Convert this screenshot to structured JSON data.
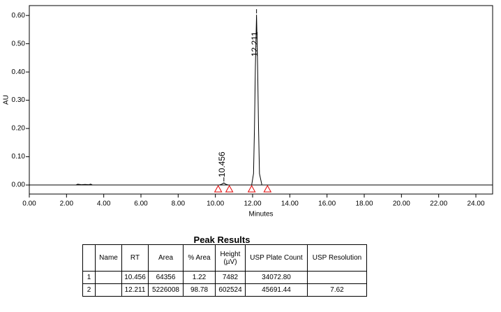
{
  "chart_data": {
    "type": "line",
    "x_label": "Minutes",
    "y_label": "AU",
    "xlim": [
      0,
      24.9
    ],
    "ylim": [
      -0.032,
      0.635
    ],
    "xticks": [
      {
        "value": 0,
        "label": "0.00"
      },
      {
        "value": 2,
        "label": "2.00"
      },
      {
        "value": 4,
        "label": "4.00"
      },
      {
        "value": 6,
        "label": "6.00"
      },
      {
        "value": 8,
        "label": "8.00"
      },
      {
        "value": 10,
        "label": "10.00"
      },
      {
        "value": 12,
        "label": "12.00"
      },
      {
        "value": 14,
        "label": "14.00"
      },
      {
        "value": 16,
        "label": "16.00"
      },
      {
        "value": 18,
        "label": "18.00"
      },
      {
        "value": 20,
        "label": "20.00"
      },
      {
        "value": 22,
        "label": "22.00"
      },
      {
        "value": 24,
        "label": "24.00"
      }
    ],
    "yticks": [
      {
        "value": 0,
        "label": "0.00"
      },
      {
        "value": 0.1,
        "label": "0.10"
      },
      {
        "value": 0.2,
        "label": "0.20"
      },
      {
        "value": 0.3,
        "label": "0.30"
      },
      {
        "value": 0.4,
        "label": "0.40"
      },
      {
        "value": 0.5,
        "label": "0.50"
      },
      {
        "value": 0.6,
        "label": "0.60"
      }
    ],
    "series": [
      {
        "color": "#000000",
        "x": [
          0,
          2.5,
          2.6,
          2.8,
          3.0,
          3.2,
          3.3,
          3.4,
          10.2,
          10.35,
          10.456,
          10.55,
          10.7,
          11.95,
          12.05,
          12.1,
          12.15,
          12.211,
          12.27,
          12.32,
          12.37,
          12.5,
          24.9
        ],
        "values": [
          0,
          0,
          0.003,
          0.001,
          0.002,
          0.001,
          0.003,
          0,
          0,
          0.003,
          0.0075,
          0.003,
          0,
          0,
          0.04,
          0.2,
          0.42,
          0.6025,
          0.42,
          0.2,
          0.04,
          0,
          0
        ]
      }
    ],
    "peak_labels": [
      10.456,
      12.211
    ],
    "integration_marks": [
      10.15,
      10.75,
      11.95,
      12.8
    ]
  },
  "table": {
    "title": "Peak Results",
    "header": [
      null,
      "Name",
      "RT",
      "Area",
      "% Area",
      "Height (µV)",
      "USP Plate Count",
      "USP Resolution"
    ],
    "rows": [
      [
        "1",
        null,
        "10.456",
        "64356",
        "1.22",
        "7482",
        "34072.80",
        null
      ],
      [
        "2",
        null,
        "12.211",
        "5226008",
        "98.78",
        "602524",
        "45691.44",
        "7.62"
      ]
    ]
  }
}
